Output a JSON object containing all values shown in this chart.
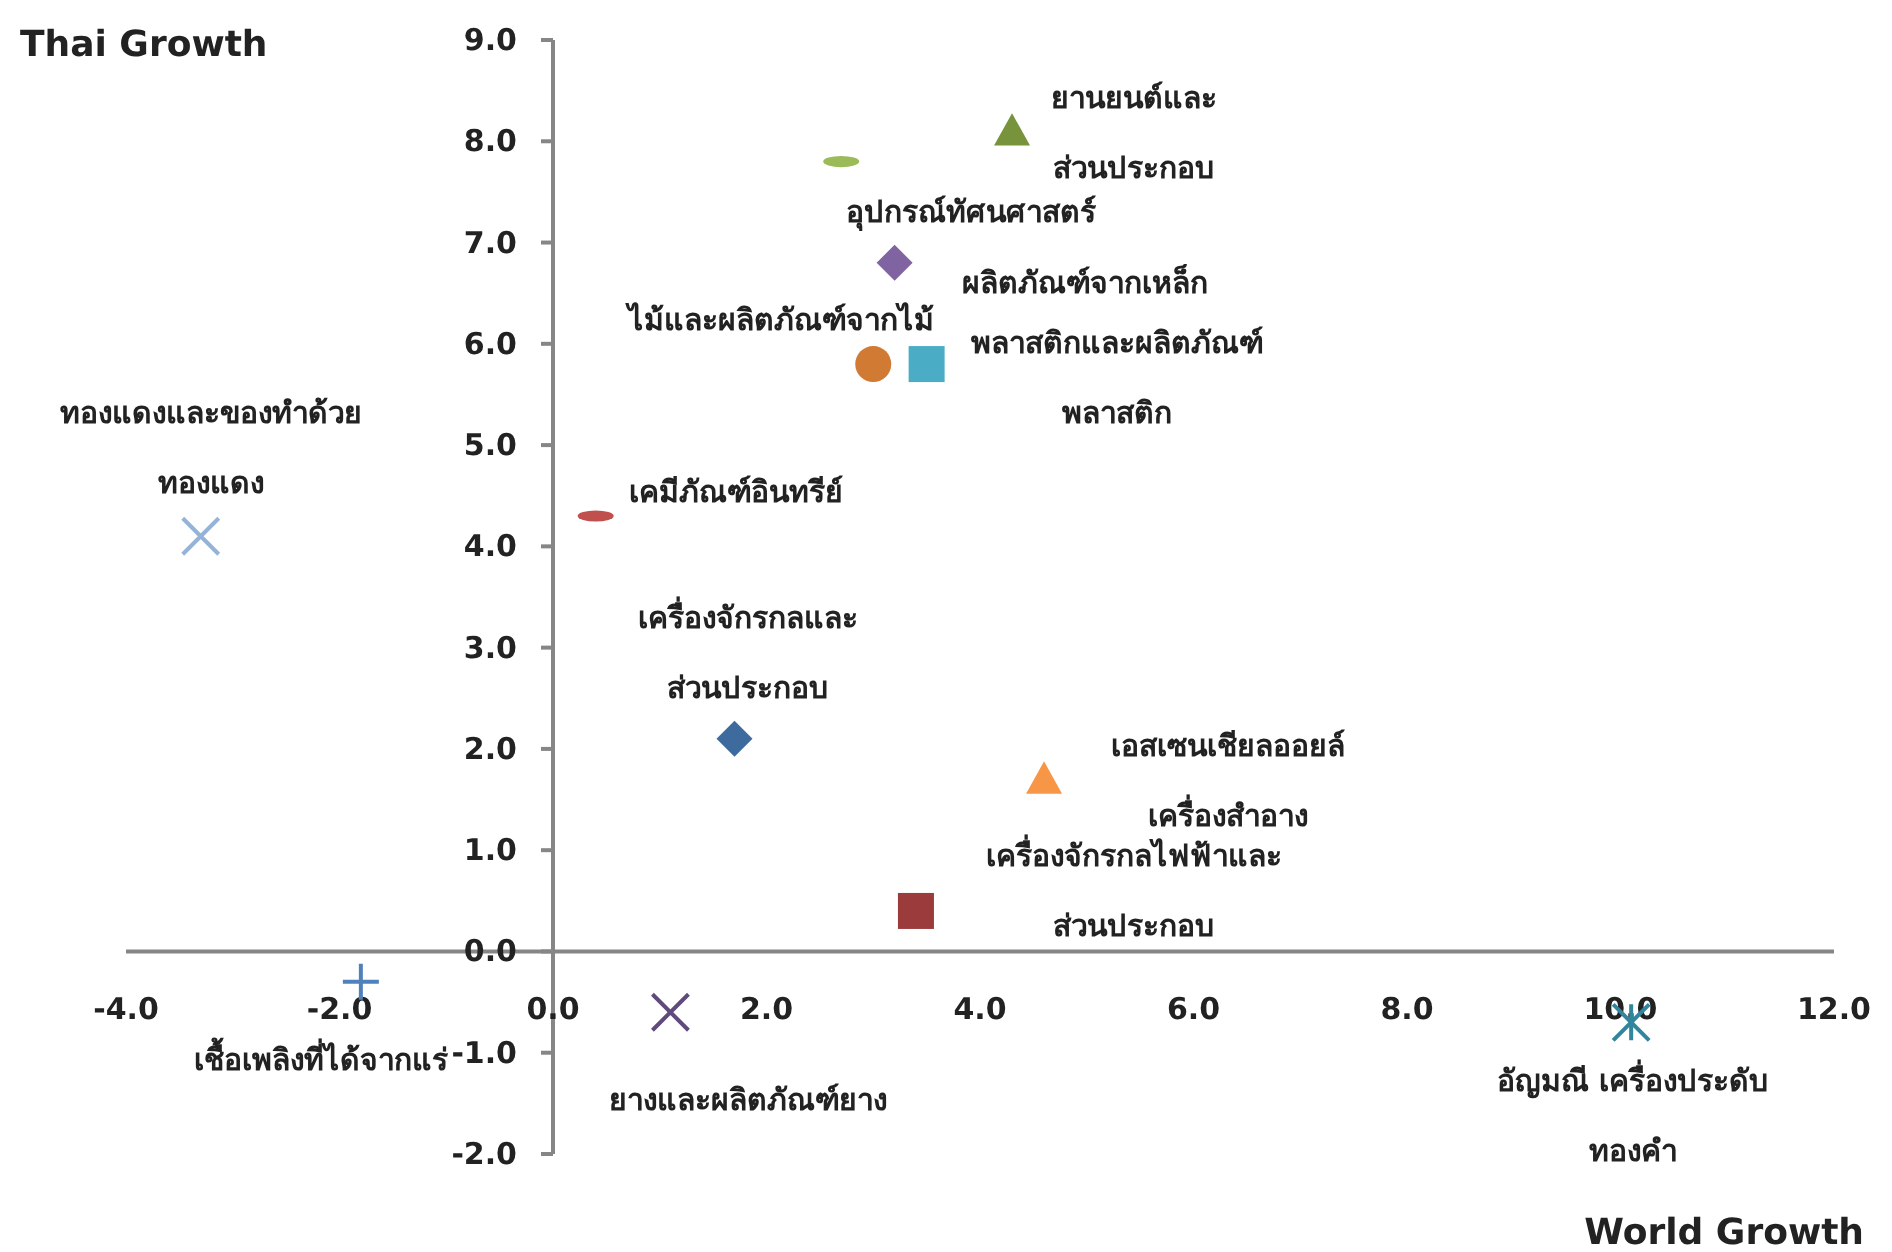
{
  "chart_data": {
    "type": "scatter",
    "xlabel": "World Growth",
    "ylabel": "Thai Growth",
    "xlim": [
      -4,
      12
    ],
    "ylim": [
      -2,
      9
    ],
    "xticks": [
      {
        "value": -4,
        "label": "-4.0"
      },
      {
        "value": -2,
        "label": "-2.0"
      },
      {
        "value": 0,
        "label": "0.0"
      },
      {
        "value": 2,
        "label": "2.0"
      },
      {
        "value": 4,
        "label": "4.0"
      },
      {
        "value": 6,
        "label": "6.0"
      },
      {
        "value": 8,
        "label": "8.0"
      },
      {
        "value": 10,
        "label": "10.0"
      },
      {
        "value": 12,
        "label": "12.0"
      }
    ],
    "yticks": [
      {
        "value": -2,
        "label": "-2.0"
      },
      {
        "value": -1,
        "label": "-1.0"
      },
      {
        "value": 0,
        "label": "0.0"
      },
      {
        "value": 1,
        "label": "1.0"
      },
      {
        "value": 2,
        "label": "2.0"
      },
      {
        "value": 3,
        "label": "3.0"
      },
      {
        "value": 4,
        "label": "4.0"
      },
      {
        "value": 5,
        "label": "5.0"
      },
      {
        "value": 6,
        "label": "6.0"
      },
      {
        "value": 7,
        "label": "7.0"
      },
      {
        "value": 8,
        "label": "8.0"
      },
      {
        "value": 9,
        "label": "9.0"
      }
    ],
    "series": [
      {
        "name": "ยานยนต์และ\nส่วนประกอบ",
        "color": "#77933c",
        "marker": "triangle",
        "x": [
          4.3
        ],
        "values": [
          8.1
        ]
      },
      {
        "name": "อุปกรณ์ทัศนศาสตร์",
        "color": "#9bbb59",
        "x": [
          2.7
        ],
        "values": [
          7.8
        ]
      },
      {
        "name": "ผลิตภัณฑ์จากเหล็ก",
        "color": "#8064a2",
        "marker": "diamond",
        "x": [
          3.2
        ],
        "values": [
          6.8
        ]
      },
      {
        "name": "ไม้และผลิตภัณฑ์จากไม้",
        "color": "#d07a33",
        "marker": "circle",
        "x": [
          3.0
        ],
        "values": [
          5.8
        ]
      },
      {
        "name": "พลาสติกและผลิตภัณฑ์\nพลาสติก",
        "color": "#4bacc6",
        "marker": "square",
        "x": [
          3.5
        ],
        "values": [
          5.8
        ]
      },
      {
        "name": "เคมีภัณฑ์อินทรีย์",
        "color": "#c0504d",
        "x": [
          0.4
        ],
        "values": [
          4.3
        ]
      },
      {
        "name": "ทองแดงและของทำด้วย\nทองแดง",
        "color": "#95b3d7",
        "marker": "x",
        "x": [
          -3.3
        ],
        "values": [
          4.1
        ]
      },
      {
        "name": "เครื่องจักรกลและ\nส่วนประกอบ",
        "color": "#3d6b9e",
        "marker": "diamond",
        "x": [
          1.7
        ],
        "values": [
          2.1
        ]
      },
      {
        "name": "เอสเซนเชียลออยล์\nเครื่องสำอาง",
        "color": "#f79646",
        "marker": "triangle",
        "x": [
          4.6
        ],
        "values": [
          1.7
        ]
      },
      {
        "name": "เครื่องจักรกลไฟฟ้าและ\nส่วนประกอบ",
        "color": "#9b3b3b",
        "marker": "square",
        "x": [
          3.4
        ],
        "values": [
          0.4
        ]
      },
      {
        "name": "เชื้อเพลิงที่ได้จากแร่",
        "color": "#4f81bd",
        "marker": "plus",
        "x": [
          -1.8
        ],
        "values": [
          -0.3
        ]
      },
      {
        "name": "ยางและผลิตภัณฑ์ยาง",
        "color": "#604a7b",
        "marker": "x",
        "x": [
          1.1
        ],
        "values": [
          -0.6
        ]
      },
      {
        "name": "อัญมณี เครื่องประดับ\nทองคำ",
        "color": "#31859c",
        "marker": "cross",
        "x": [
          10.1
        ],
        "values": [
          -0.7
        ]
      }
    ]
  }
}
